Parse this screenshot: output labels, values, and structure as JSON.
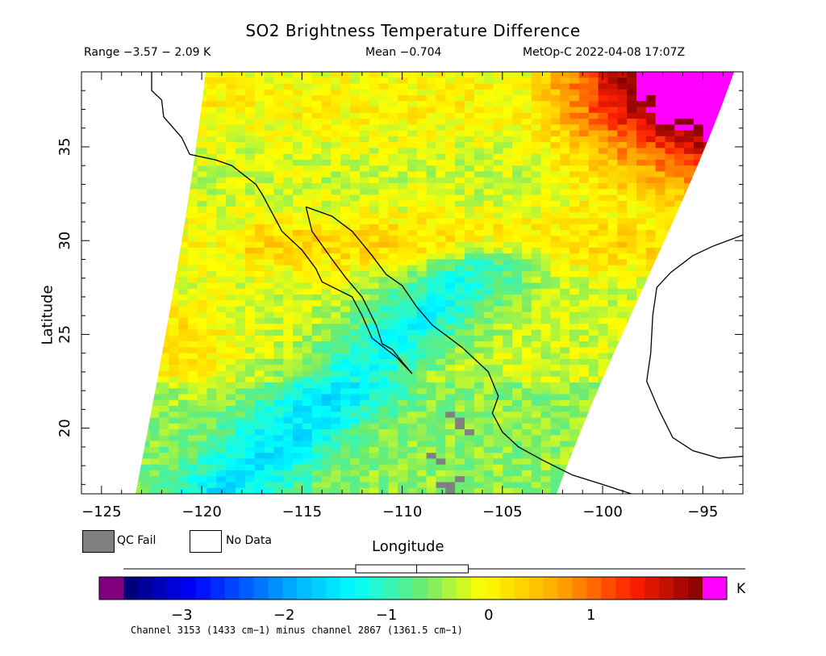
{
  "title": "SO2 Brightness Temperature Difference",
  "header": {
    "range": "Range −3.57 − 2.09 K",
    "mean": "Mean −0.704",
    "satellite": "MetOp-C 2022-04-08 17:07Z"
  },
  "legend": {
    "qc_fail": "QC Fail",
    "no_data": "No Data",
    "qc_color": "#808080",
    "no_data_color": "#ffffff"
  },
  "colorbar": {
    "unit": "K",
    "min": -3.57,
    "max": 2.09,
    "mean": -0.704,
    "box_range": [
      -1.3,
      -0.2
    ],
    "under_color": "#800080",
    "over_color": "#ff00ff",
    "ticks": [
      "−3",
      "−2",
      "−1",
      "0",
      "1"
    ],
    "tick_values": [
      -3,
      -2,
      -1,
      0,
      1
    ]
  },
  "footnote": "Channel 3153 (1433 cm−1) minus channel 2867 (1361.5 cm−1)",
  "chart_data": {
    "type": "heatmap",
    "title": "SO2 Brightness Temperature Difference",
    "xlabel": "Longitude",
    "ylabel": "Latitude",
    "xlim": [
      -126,
      -93
    ],
    "ylim": [
      16.5,
      39
    ],
    "x_ticks": [
      "−125",
      "−120",
      "−115",
      "−110",
      "−105",
      "−100",
      "−95"
    ],
    "x_tick_values": [
      -125,
      -120,
      -115,
      -110,
      -105,
      -100,
      -95
    ],
    "y_ticks": [
      "20",
      "25",
      "30",
      "35"
    ],
    "y_tick_values": [
      20,
      25,
      30,
      35
    ],
    "value_range": [
      -3.57,
      2.09
    ],
    "mean": -0.704,
    "units": "K",
    "colormap": "rainbow (blue-cyan-green-yellow-red)",
    "features": [
      {
        "region": "swath east edge, lat 32-39, lon -101 to -96",
        "approx_value": 2.0
      },
      {
        "region": "band near lat 29-31",
        "approx_value": 0.3
      },
      {
        "region": "west swath lat 23-27, lon -123 to -119",
        "approx_value": 0.2
      },
      {
        "region": "Gulf of California / Mexican coast lat 22-28",
        "approx_value": -1.3
      },
      {
        "region": "south part lat 17-23",
        "approx_value": -0.8
      }
    ]
  }
}
